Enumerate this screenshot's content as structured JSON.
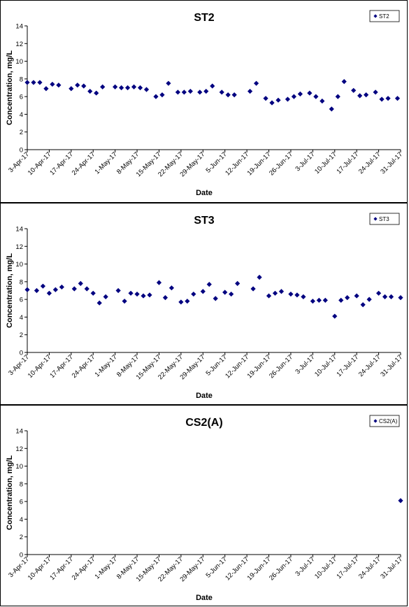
{
  "chart_data": [
    {
      "type": "scatter",
      "title": "ST2",
      "xlabel": "Date",
      "ylabel": "Concentration, mg/L",
      "ylim": [
        0,
        14
      ],
      "yticks": [
        0,
        2,
        4,
        6,
        8,
        10,
        12,
        14
      ],
      "xlim": [
        "2017-04-03",
        "2017-07-31"
      ],
      "xtick_labels": [
        "3-Apr-17",
        "10-Apr-17",
        "17-Apr-17",
        "24-Apr-17",
        "1-May-17",
        "8-May-17",
        "15-May-17",
        "22-May-17",
        "29-May-17",
        "5-Jun-17",
        "12-Jun-17",
        "19-Jun-17",
        "26-Jun-17",
        "3-Jul-17",
        "10-Jul-17",
        "17-Jul-17",
        "24-Jul-17",
        "31-Jul-17"
      ],
      "legend": "top-right",
      "grid": false,
      "color": "#000080",
      "series": [
        {
          "name": "ST2",
          "points": [
            [
              "2017-04-03",
              7.6
            ],
            [
              "2017-04-05",
              7.6
            ],
            [
              "2017-04-07",
              7.6
            ],
            [
              "2017-04-09",
              6.9
            ],
            [
              "2017-04-11",
              7.4
            ],
            [
              "2017-04-13",
              7.3
            ],
            [
              "2017-04-17",
              6.9
            ],
            [
              "2017-04-19",
              7.3
            ],
            [
              "2017-04-21",
              7.2
            ],
            [
              "2017-04-23",
              6.6
            ],
            [
              "2017-04-25",
              6.4
            ],
            [
              "2017-04-27",
              7.1
            ],
            [
              "2017-05-01",
              7.1
            ],
            [
              "2017-05-03",
              7.0
            ],
            [
              "2017-05-05",
              7.0
            ],
            [
              "2017-05-07",
              7.1
            ],
            [
              "2017-05-09",
              7.0
            ],
            [
              "2017-05-11",
              6.8
            ],
            [
              "2017-05-14",
              6.0
            ],
            [
              "2017-05-16",
              6.2
            ],
            [
              "2017-05-18",
              7.5
            ],
            [
              "2017-05-21",
              6.5
            ],
            [
              "2017-05-23",
              6.5
            ],
            [
              "2017-05-25",
              6.6
            ],
            [
              "2017-05-28",
              6.5
            ],
            [
              "2017-05-30",
              6.6
            ],
            [
              "2017-06-01",
              7.2
            ],
            [
              "2017-06-04",
              6.5
            ],
            [
              "2017-06-06",
              6.2
            ],
            [
              "2017-06-08",
              6.2
            ],
            [
              "2017-06-13",
              6.6
            ],
            [
              "2017-06-15",
              7.5
            ],
            [
              "2017-06-18",
              5.8
            ],
            [
              "2017-06-20",
              5.3
            ],
            [
              "2017-06-22",
              5.6
            ],
            [
              "2017-06-25",
              5.7
            ],
            [
              "2017-06-27",
              6.0
            ],
            [
              "2017-06-29",
              6.3
            ],
            [
              "2017-07-02",
              6.4
            ],
            [
              "2017-07-04",
              6.0
            ],
            [
              "2017-07-06",
              5.5
            ],
            [
              "2017-07-09",
              4.6
            ],
            [
              "2017-07-11",
              6.0
            ],
            [
              "2017-07-13",
              7.7
            ],
            [
              "2017-07-16",
              6.7
            ],
            [
              "2017-07-18",
              6.1
            ],
            [
              "2017-07-20",
              6.2
            ],
            [
              "2017-07-23",
              6.5
            ],
            [
              "2017-07-25",
              5.7
            ],
            [
              "2017-07-27",
              5.8
            ],
            [
              "2017-07-30",
              5.8
            ]
          ]
        }
      ]
    },
    {
      "type": "scatter",
      "title": "ST3",
      "xlabel": "Date",
      "ylabel": "Concentration, mg/L",
      "ylim": [
        0,
        14
      ],
      "yticks": [
        0,
        2,
        4,
        6,
        8,
        10,
        12,
        14
      ],
      "xlim": [
        "2017-04-03",
        "2017-07-31"
      ],
      "xtick_labels": [
        "3-Apr-17",
        "10-Apr-17",
        "17-Apr-17",
        "24-Apr-17",
        "1-May-17",
        "8-May-17",
        "15-May-17",
        "22-May-17",
        "29-May-17",
        "5-Jun-17",
        "12-Jun-17",
        "19-Jun-17",
        "26-Jun-17",
        "3-Jul-17",
        "10-Jul-17",
        "17-Jul-17",
        "24-Jul-17",
        "31-Jul-17"
      ],
      "legend": "top-right",
      "grid": false,
      "color": "#000080",
      "series": [
        {
          "name": "ST3",
          "points": [
            [
              "2017-04-03",
              7.1
            ],
            [
              "2017-04-06",
              7.0
            ],
            [
              "2017-04-08",
              7.5
            ],
            [
              "2017-04-10",
              6.7
            ],
            [
              "2017-04-12",
              7.1
            ],
            [
              "2017-04-14",
              7.4
            ],
            [
              "2017-04-18",
              7.2
            ],
            [
              "2017-04-20",
              7.8
            ],
            [
              "2017-04-22",
              7.2
            ],
            [
              "2017-04-24",
              6.7
            ],
            [
              "2017-04-26",
              5.6
            ],
            [
              "2017-04-28",
              6.3
            ],
            [
              "2017-05-02",
              7.0
            ],
            [
              "2017-05-04",
              5.8
            ],
            [
              "2017-05-06",
              6.7
            ],
            [
              "2017-05-08",
              6.6
            ],
            [
              "2017-05-10",
              6.4
            ],
            [
              "2017-05-12",
              6.5
            ],
            [
              "2017-05-15",
              7.9
            ],
            [
              "2017-05-17",
              6.2
            ],
            [
              "2017-05-19",
              7.3
            ],
            [
              "2017-05-22",
              5.7
            ],
            [
              "2017-05-24",
              5.8
            ],
            [
              "2017-05-26",
              6.6
            ],
            [
              "2017-05-29",
              6.9
            ],
            [
              "2017-05-31",
              7.7
            ],
            [
              "2017-06-02",
              6.1
            ],
            [
              "2017-06-05",
              6.8
            ],
            [
              "2017-06-07",
              6.6
            ],
            [
              "2017-06-09",
              7.8
            ],
            [
              "2017-06-14",
              7.2
            ],
            [
              "2017-06-16",
              8.5
            ],
            [
              "2017-06-19",
              6.4
            ],
            [
              "2017-06-21",
              6.7
            ],
            [
              "2017-06-23",
              6.9
            ],
            [
              "2017-06-26",
              6.6
            ],
            [
              "2017-06-28",
              6.5
            ],
            [
              "2017-06-30",
              6.3
            ],
            [
              "2017-07-03",
              5.8
            ],
            [
              "2017-07-05",
              5.9
            ],
            [
              "2017-07-07",
              5.9
            ],
            [
              "2017-07-10",
              4.1
            ],
            [
              "2017-07-12",
              5.9
            ],
            [
              "2017-07-14",
              6.2
            ],
            [
              "2017-07-17",
              6.4
            ],
            [
              "2017-07-19",
              5.4
            ],
            [
              "2017-07-21",
              6.0
            ],
            [
              "2017-07-24",
              6.7
            ],
            [
              "2017-07-26",
              6.3
            ],
            [
              "2017-07-28",
              6.3
            ],
            [
              "2017-07-31",
              6.2
            ]
          ]
        }
      ]
    },
    {
      "type": "scatter",
      "title": "CS2(A)",
      "xlabel": "Date",
      "ylabel": "Concentration, mg/L",
      "ylim": [
        0,
        14
      ],
      "yticks": [
        0,
        2,
        4,
        6,
        8,
        10,
        12,
        14
      ],
      "xlim": [
        "2017-04-03",
        "2017-07-31"
      ],
      "xtick_labels": [
        "3-Apr-17",
        "10-Apr-17",
        "17-Apr-17",
        "24-Apr-17",
        "1-May-17",
        "8-May-17",
        "15-May-17",
        "22-May-17",
        "29-May-17",
        "5-Jun-17",
        "12-Jun-17",
        "19-Jun-17",
        "26-Jun-17",
        "3-Jul-17",
        "10-Jul-17",
        "17-Jul-17",
        "24-Jul-17",
        "31-Jul-17"
      ],
      "legend": "top-right",
      "grid": false,
      "color": "#000080",
      "series": [
        {
          "name": "CS2(A)",
          "points": [
            [
              "2017-07-31",
              6.1
            ]
          ]
        }
      ]
    }
  ]
}
